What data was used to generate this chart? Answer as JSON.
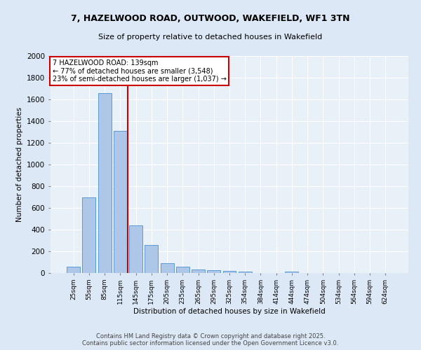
{
  "title_line1": "7, HAZELWOOD ROAD, OUTWOOD, WAKEFIELD, WF1 3TN",
  "title_line2": "Size of property relative to detached houses in Wakefield",
  "xlabel": "Distribution of detached houses by size in Wakefield",
  "ylabel": "Number of detached properties",
  "categories": [
    "25sqm",
    "55sqm",
    "85sqm",
    "115sqm",
    "145sqm",
    "175sqm",
    "205sqm",
    "235sqm",
    "265sqm",
    "295sqm",
    "325sqm",
    "354sqm",
    "384sqm",
    "414sqm",
    "444sqm",
    "474sqm",
    "504sqm",
    "534sqm",
    "564sqm",
    "594sqm",
    "624sqm"
  ],
  "values": [
    60,
    700,
    1660,
    1310,
    440,
    255,
    90,
    55,
    35,
    25,
    20,
    15,
    0,
    0,
    12,
    0,
    0,
    0,
    0,
    0,
    0
  ],
  "bar_color": "#aec6e8",
  "bar_edge_color": "#5b9bd5",
  "vline_x": 3.5,
  "vline_color": "#cc0000",
  "annotation_title": "7 HAZELWOOD ROAD: 139sqm",
  "annotation_line2": "← 77% of detached houses are smaller (3,548)",
  "annotation_line3": "23% of semi-detached houses are larger (1,037) →",
  "annotation_box_color": "#cc0000",
  "ylim": [
    0,
    2000
  ],
  "yticks": [
    0,
    200,
    400,
    600,
    800,
    1000,
    1200,
    1400,
    1600,
    1800,
    2000
  ],
  "footer_line1": "Contains HM Land Registry data © Crown copyright and database right 2025.",
  "footer_line2": "Contains public sector information licensed under the Open Government Licence v3.0.",
  "bg_color": "#dce8f5",
  "plot_bg_color": "#e8f0f8"
}
